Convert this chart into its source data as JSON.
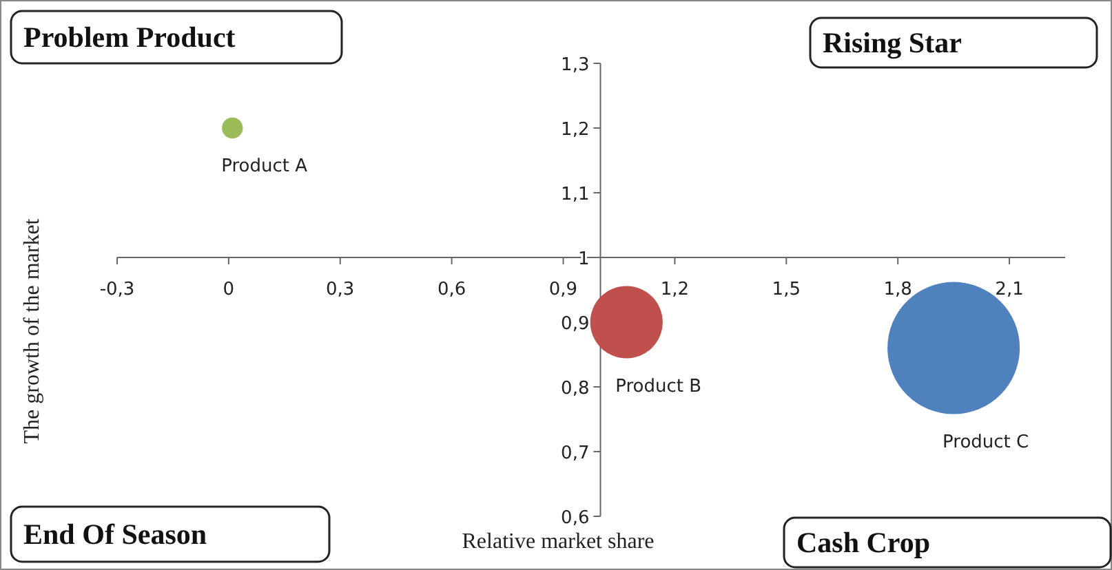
{
  "chart_data": {
    "type": "bubble",
    "xlabel": "Relative market share",
    "ylabel": "The growth of the market",
    "annotations": [
      "Problem Product",
      "Rising Star",
      "End Of Season",
      "Cash Crop"
    ],
    "xlim": [
      -0.3,
      2.25
    ],
    "xticks": [
      {
        "value": -0.3,
        "label": "-0,3"
      },
      0,
      {
        "value": 0.3,
        "label": "0,3"
      },
      {
        "value": 0.6,
        "label": "0,6"
      },
      {
        "value": 0.9,
        "label": "0,9"
      },
      {
        "value": 1.2,
        "label": "1,2"
      },
      {
        "value": 1.5,
        "label": "1,5"
      },
      {
        "value": 1.8,
        "label": "1,8"
      },
      {
        "value": 2.1,
        "label": "2,1"
      }
    ],
    "ylim": [
      0.6,
      1.3
    ],
    "yticks": [
      {
        "value": 0.6,
        "label": "0,6"
      },
      {
        "value": 0.7,
        "label": "0,7"
      },
      {
        "value": 0.8,
        "label": "0,8"
      },
      {
        "value": 0.9,
        "label": "0,9"
      },
      1,
      {
        "value": 1.1,
        "label": "1,1"
      },
      {
        "value": 1.2,
        "label": "1,2"
      },
      {
        "value": 1.3,
        "label": "1,3"
      }
    ],
    "grid": false,
    "series": [
      {
        "name": "Product A",
        "color": "#9bbb59",
        "x": [
          0.01
        ],
        "values": [
          1.2
        ],
        "sizes": [
          0.025
        ]
      },
      {
        "name": "Product B",
        "color": "#c0504d",
        "x": [
          1.07
        ],
        "values": [
          0.9
        ],
        "sizes": [
          0.3
        ]
      },
      {
        "name": "Product C",
        "color": "#4f81bd",
        "x": [
          1.95
        ],
        "values": [
          0.86
        ],
        "sizes": [
          1
        ]
      }
    ]
  }
}
